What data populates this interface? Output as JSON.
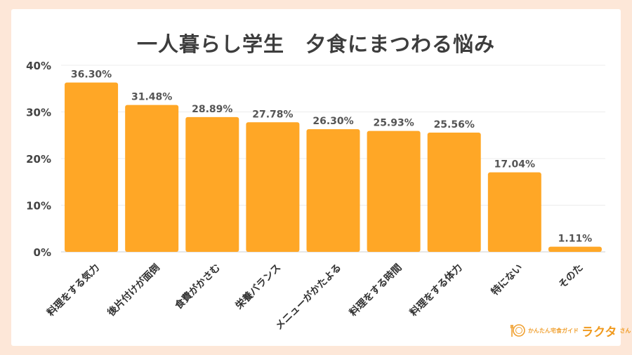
{
  "chart_data": {
    "type": "bar",
    "title": "一人暮らし学生　夕食にまつわる悩み",
    "categories": [
      "料理をする気力",
      "後片付けが面倒",
      "食費がかさむ",
      "栄養バランス",
      "メニューがかたよる",
      "料理をする時間",
      "料理をする体力",
      "特にない",
      "そのた"
    ],
    "values": [
      36.3,
      31.48,
      28.89,
      27.78,
      26.3,
      25.93,
      25.56,
      17.04,
      1.11
    ],
    "value_labels": [
      "36.30%",
      "31.48%",
      "28.89%",
      "27.78%",
      "26.30%",
      "25.93%",
      "25.56%",
      "17.04%",
      "1.11%"
    ],
    "y_ticks": [
      "0%",
      "10%",
      "20%",
      "30%",
      "40%"
    ],
    "ylim": [
      0,
      40
    ],
    "grid": true,
    "bar_color": "#ffa726"
  },
  "brand": {
    "subtitle": "かんたん宅食ガイド",
    "name": "ラクタ",
    "suffix": "さん"
  }
}
